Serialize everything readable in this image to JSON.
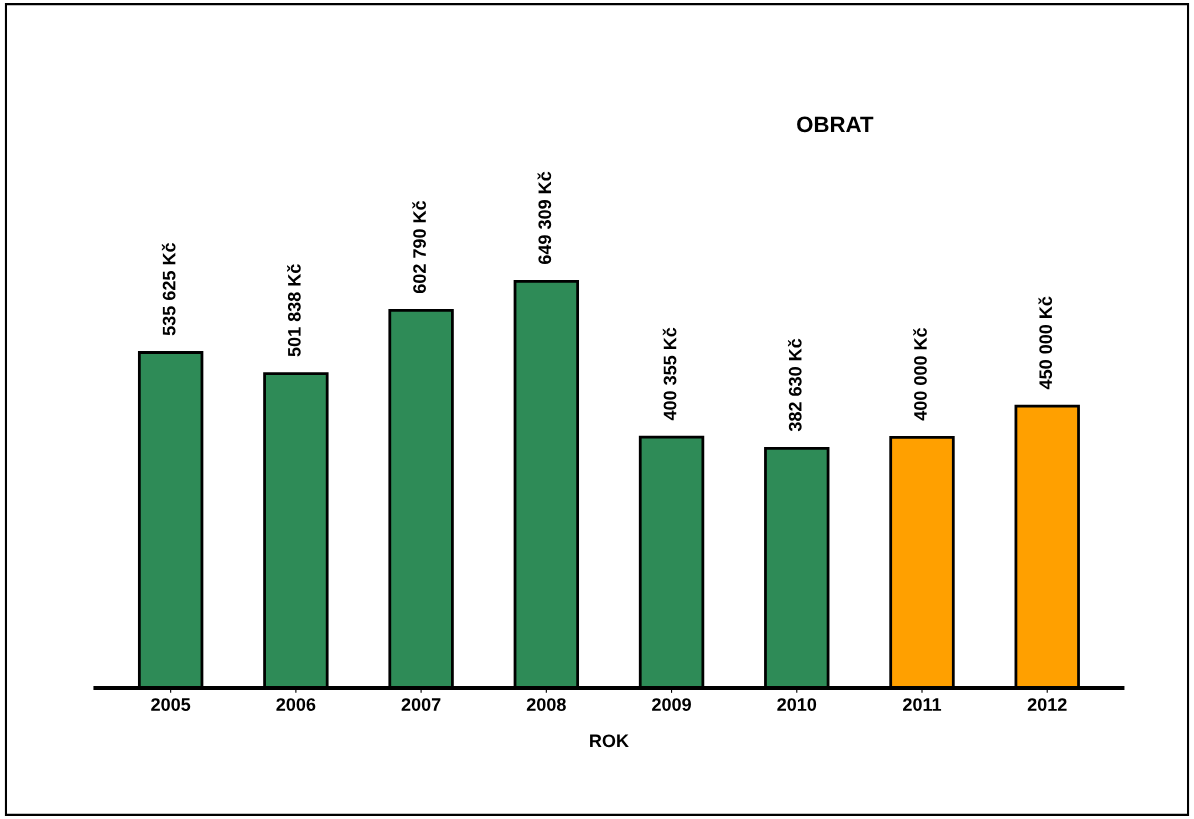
{
  "chart_data": {
    "type": "bar",
    "title": "OBRAT",
    "xlabel": "ROK",
    "categories": [
      "2005",
      "2006",
      "2007",
      "2008",
      "2009",
      "2010",
      "2011",
      "2012"
    ],
    "values": [
      535625,
      501838,
      602790,
      649309,
      400355,
      382630,
      400000,
      450000
    ],
    "colors": [
      "#2e8b57",
      "#2e8b57",
      "#2e8b57",
      "#2e8b57",
      "#2e8b57",
      "#2e8b57",
      "#ffa000",
      "#ffa000"
    ],
    "value_labels": [
      "535 625 Kč",
      "501 838 Kč",
      "602 790 Kč",
      "649 309 Kč",
      "400 355 Kč",
      "382 630 Kč",
      "400 000 Kč",
      "450 000 Kč"
    ],
    "grid": false,
    "legend": false
  }
}
